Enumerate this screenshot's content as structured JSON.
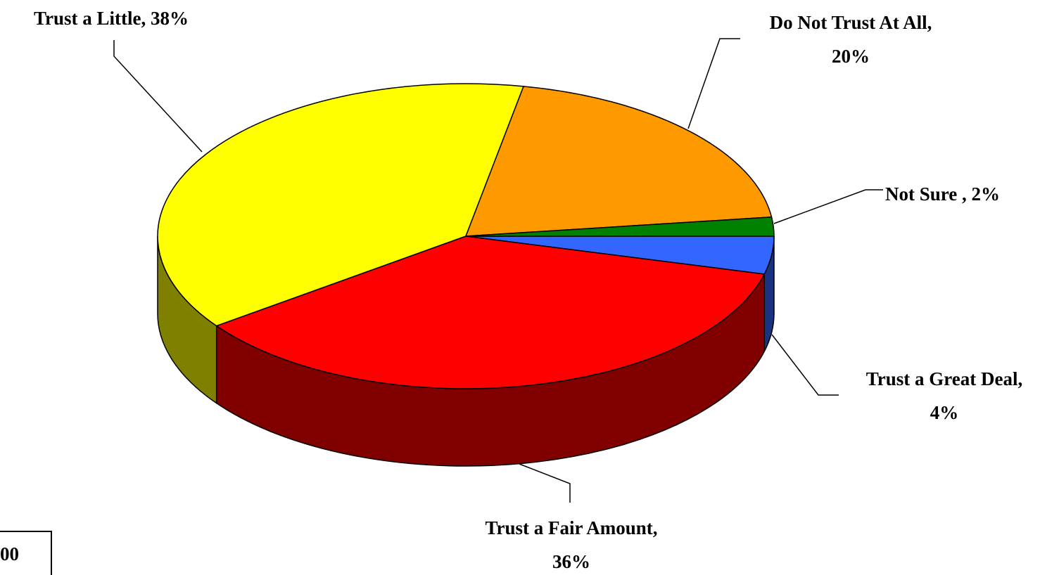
{
  "chart_data": {
    "type": "pie",
    "three_d": true,
    "slices": [
      {
        "name": "Trust a Great Deal",
        "value": 4,
        "label_lines": [
          "Trust a Great Deal,",
          "4%"
        ],
        "color": "#3366FF",
        "side_color": "#1A3380"
      },
      {
        "name": "Trust a Fair Amount",
        "value": 36,
        "label_lines": [
          "Trust a Fair Amount,",
          "36%"
        ],
        "color": "#FF0000",
        "side_color": "#800000"
      },
      {
        "name": "Trust a Little",
        "value": 38,
        "label_lines": [
          "Trust a Little, 38%"
        ],
        "color": "#FFFF00",
        "side_color": "#808000"
      },
      {
        "name": "Do Not Trust At All",
        "value": 20,
        "label_lines": [
          "Do Not Trust At All,",
          "20%"
        ],
        "color": "#FF9900",
        "side_color": "#804D00"
      },
      {
        "name": "Not Sure",
        "value": 2,
        "label_lines": [
          "Not Sure , 2%"
        ],
        "color": "#008000",
        "side_color": "#004000"
      }
    ],
    "legend": "none"
  },
  "note": {
    "text": "00"
  }
}
